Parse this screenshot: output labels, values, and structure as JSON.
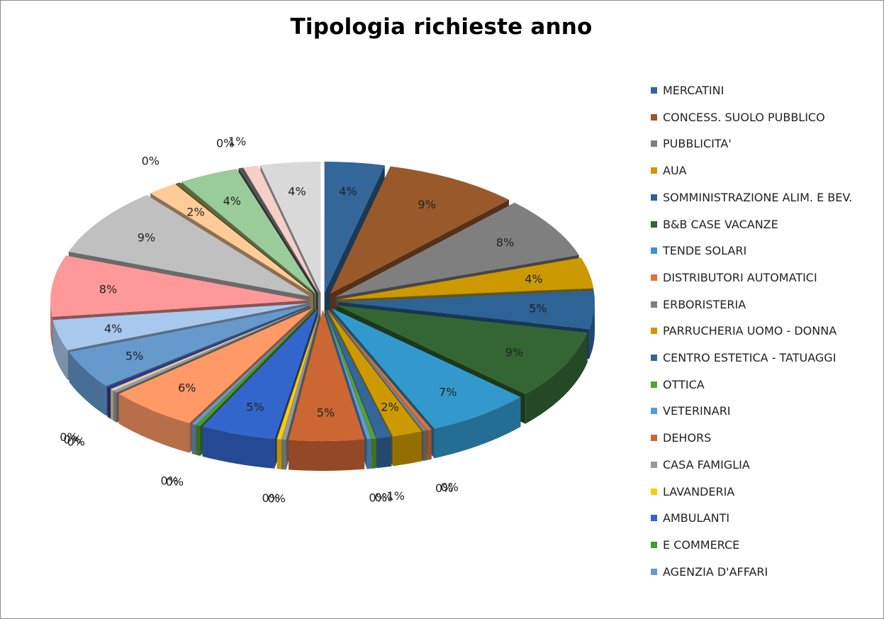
{
  "chart_data": {
    "type": "pie",
    "title": "Tipologia richieste anno",
    "legend_position": "right",
    "exploded": true,
    "three_d": true,
    "slices": [
      {
        "name": "MERCATINI",
        "value": 4,
        "label": "4%",
        "color": "#336699"
      },
      {
        "name": "CONCESS. SUOLO PUBBLICO",
        "value": 9,
        "label": "9%",
        "color": "#99592b"
      },
      {
        "name": "PUBBLICITA'",
        "value": 8,
        "label": "8%",
        "color": "#7f7f7f"
      },
      {
        "name": "AUA",
        "value": 4,
        "label": "4%",
        "color": "#cc9900"
      },
      {
        "name": "SOMMINISTRAZIONE ALIM. E BEV.",
        "value": 5,
        "label": "5%",
        "color": "#2e6396"
      },
      {
        "name": "B&B CASE VACANZE",
        "value": 9,
        "label": "9%",
        "color": "#336633"
      },
      {
        "name": "TENDE SOLARI",
        "value": 7,
        "label": "7%",
        "color": "#3399cc"
      },
      {
        "name": "DISTRIBUTORI AUTOMATICI",
        "value": 0.3,
        "label": "0%",
        "color": "#e0703a"
      },
      {
        "name": "ERBORISTERIA",
        "value": 0.3,
        "label": "0%",
        "color": "#808080"
      },
      {
        "name": "PARRUCHERIA UOMO - DONNA",
        "value": 2,
        "label": "2%",
        "color": "#cc9900"
      },
      {
        "name": "CENTRO ESTETICA - TATUAGGI",
        "value": 1,
        "label": "1%",
        "color": "#336699"
      },
      {
        "name": "OTTICA",
        "value": 0.3,
        "label": "0%",
        "color": "#5aa02c"
      },
      {
        "name": "VETERINARI",
        "value": 0.3,
        "label": "0%",
        "color": "#5b9bd5"
      },
      {
        "name": "DEHORS",
        "value": 5,
        "label": "5%",
        "color": "#cc6633"
      },
      {
        "name": "CASA FAMIGLIA",
        "value": 0.3,
        "label": "0%",
        "color": "#999999"
      },
      {
        "name": "LAVANDERIA",
        "value": 0.3,
        "label": "0%",
        "color": "#ffcc00"
      },
      {
        "name": " AMBULANTI",
        "value": 5,
        "label": "5%",
        "color": "#3366cc"
      },
      {
        "name": "E COMMERCE",
        "value": 0.3,
        "label": "0%",
        "color": "#4c9a2a"
      },
      {
        "name": "AGENZIA D'AFFARI",
        "value": 0.3,
        "label": "0%",
        "color": "#6699cc"
      },
      {
        "name": "",
        "value": 6,
        "label": "6%",
        "color": "#ff9966"
      },
      {
        "name": "",
        "value": 0.3,
        "label": "0%",
        "color": "#999999"
      },
      {
        "name": "",
        "value": 0.3,
        "label": "0%",
        "color": "#ddd0a0"
      },
      {
        "name": "",
        "value": 0.3,
        "label": "0%",
        "color": "#333399"
      },
      {
        "name": "",
        "value": 5,
        "label": "5%",
        "color": "#6699cc"
      },
      {
        "name": "",
        "value": 4,
        "label": "4%",
        "color": "#a9c8ee"
      },
      {
        "name": "",
        "value": 8,
        "label": "8%",
        "color": "#ff9999"
      },
      {
        "name": "",
        "value": 9,
        "label": "9%",
        "color": "#c0c0c0"
      },
      {
        "name": "",
        "value": 2,
        "label": "2%",
        "color": "#ffcc99"
      },
      {
        "name": "",
        "value": 0.3,
        "label": "0%",
        "color": "#666633"
      },
      {
        "name": "",
        "value": 4,
        "label": "4%",
        "color": "#99cc99"
      },
      {
        "name": "",
        "value": 0.3,
        "label": "0%",
        "color": "#555555"
      },
      {
        "name": "",
        "value": 1,
        "label": "1%",
        "color": "#f4d0c8"
      },
      {
        "name": "",
        "value": 4,
        "label": "4%",
        "color": "#d9d9d9"
      }
    ]
  }
}
